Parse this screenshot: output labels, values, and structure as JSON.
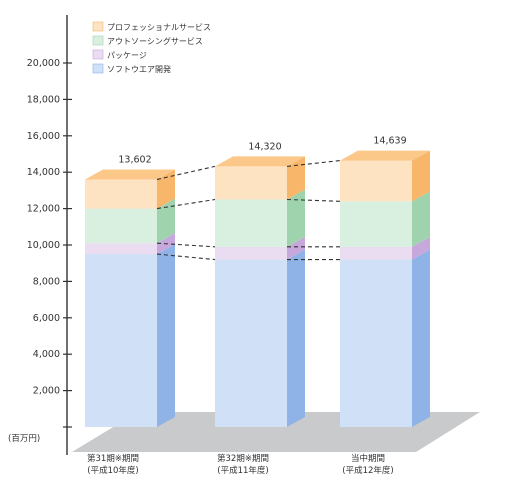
{
  "chart_data": {
    "type": "bar",
    "stacked": true,
    "style": "3d",
    "unit_label": "(百万円)",
    "ylim": [
      0,
      20000
    ],
    "yticks": [
      {
        "value": 0,
        "label": ""
      },
      {
        "value": 2000,
        "label": "2,000"
      },
      {
        "value": 4000,
        "label": "4,000"
      },
      {
        "value": 6000,
        "label": "6,000"
      },
      {
        "value": 8000,
        "label": "8,000"
      },
      {
        "value": 10000,
        "label": "10,000"
      },
      {
        "value": 12000,
        "label": "12,000"
      },
      {
        "value": 14000,
        "label": "14,000"
      },
      {
        "value": 16000,
        "label": "16,000"
      },
      {
        "value": 18000,
        "label": "18,000"
      },
      {
        "value": 20000,
        "label": "20,000"
      }
    ],
    "categories": [
      {
        "line1": "第31期※期間",
        "line2": "(平成10年度)"
      },
      {
        "line1": "第32期※期間",
        "line2": "(平成11年度)"
      },
      {
        "line1": "当中期間",
        "line2": "(平成12年度)"
      }
    ],
    "totals": [
      "13,602",
      "14,320",
      "14,639"
    ],
    "series": [
      {
        "name": "ソフトウエア開発",
        "values": [
          9500,
          9200,
          9200
        ],
        "front": "#cfe0f7",
        "side": "#8fb3e6",
        "top": "#e3eefb"
      },
      {
        "name": "パッケージ",
        "values": [
          600,
          700,
          700
        ],
        "front": "#eadcf1",
        "side": "#c7a8dc",
        "top": "#f3eaf8"
      },
      {
        "name": "アウトソーシングサービス",
        "values": [
          1900,
          2600,
          2500
        ],
        "front": "#d9efe0",
        "side": "#9fd3ae",
        "top": "#e9f6ed"
      },
      {
        "name": "プロフェッショナルサービス",
        "values": [
          1602,
          1820,
          2239
        ],
        "front": "#fde3c2",
        "side": "#f7b66a",
        "top": "#fcc889"
      }
    ],
    "legend_order": [
      "プロフェッショナルサービス",
      "アウトソーシングサービス",
      "パッケージ",
      "ソフトウエア開発"
    ],
    "grid": false,
    "legend_position": "top-left",
    "colors": {
      "axis": "#333333",
      "floor": "#c9cacc",
      "dash": "#333333",
      "text": "#333333"
    }
  }
}
